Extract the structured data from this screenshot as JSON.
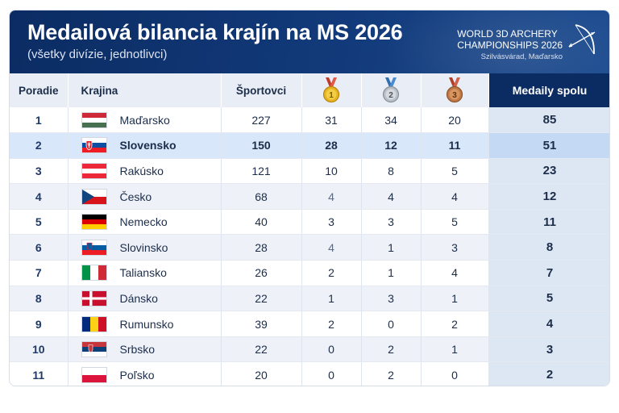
{
  "header": {
    "title": "Medailová bilancia krajín na MS 2026",
    "subtitle": "(všetky divízie, jednotlivci)",
    "event_line1": "WORLD 3D ARCHERY",
    "event_line2": "CHAMPIONSHIPS 2026",
    "event_location": "Szilvásvárad, Maďarsko",
    "logo_icon": "bow-and-arrow-icon"
  },
  "columns": {
    "rank": "Poradie",
    "country": "Krajina",
    "athletes": "Športovci",
    "gold_label": "1",
    "silver_label": "2",
    "bronze_label": "3",
    "total": "Medaily spolu"
  },
  "colors": {
    "header_bg": "#0b2c63",
    "highlight_row": "#d8e7fa",
    "gold": "#e6b422",
    "silver": "#b9bfc6",
    "bronze": "#c07a4a"
  },
  "rows": [
    {
      "rank": "1",
      "country": "Maďarsko",
      "flag": "hungary",
      "athletes": "227",
      "gold": "31",
      "silver": "34",
      "bronze": "20",
      "total": "85"
    },
    {
      "rank": "2",
      "country": "Slovensko",
      "flag": "slovakia",
      "athletes": "150",
      "gold": "28",
      "silver": "12",
      "bronze": "11",
      "total": "51",
      "highlight": true
    },
    {
      "rank": "3",
      "country": "Rakúsko",
      "flag": "austria",
      "athletes": "121",
      "gold": "10",
      "silver": "8",
      "bronze": "5",
      "total": "23"
    },
    {
      "rank": "4",
      "country": "Česko",
      "flag": "czechia",
      "athletes": "68",
      "gold": "4",
      "silver": "4",
      "bronze": "4",
      "total": "12"
    },
    {
      "rank": "5",
      "country": "Nemecko",
      "flag": "germany",
      "athletes": "40",
      "gold": "3",
      "silver": "3",
      "bronze": "5",
      "total": "11"
    },
    {
      "rank": "6",
      "country": "Slovinsko",
      "flag": "slovenia",
      "athletes": "28",
      "gold": "4",
      "silver": "1",
      "bronze": "3",
      "total": "8"
    },
    {
      "rank": "7",
      "country": "Taliansko",
      "flag": "italy",
      "athletes": "26",
      "gold": "2",
      "silver": "1",
      "bronze": "4",
      "total": "7"
    },
    {
      "rank": "8",
      "country": "Dánsko",
      "flag": "denmark",
      "athletes": "22",
      "gold": "1",
      "silver": "3",
      "bronze": "1",
      "total": "5"
    },
    {
      "rank": "9",
      "country": "Rumunsko",
      "flag": "romania",
      "athletes": "39",
      "gold": "2",
      "silver": "0",
      "bronze": "2",
      "total": "4"
    },
    {
      "rank": "10",
      "country": "Srbsko",
      "flag": "serbia",
      "athletes": "22",
      "gold": "0",
      "silver": "2",
      "bronze": "1",
      "total": "3"
    },
    {
      "rank": "11",
      "country": "Poľsko",
      "flag": "poland",
      "athletes": "20",
      "gold": "0",
      "silver": "2",
      "bronze": "0",
      "total": "2"
    }
  ]
}
